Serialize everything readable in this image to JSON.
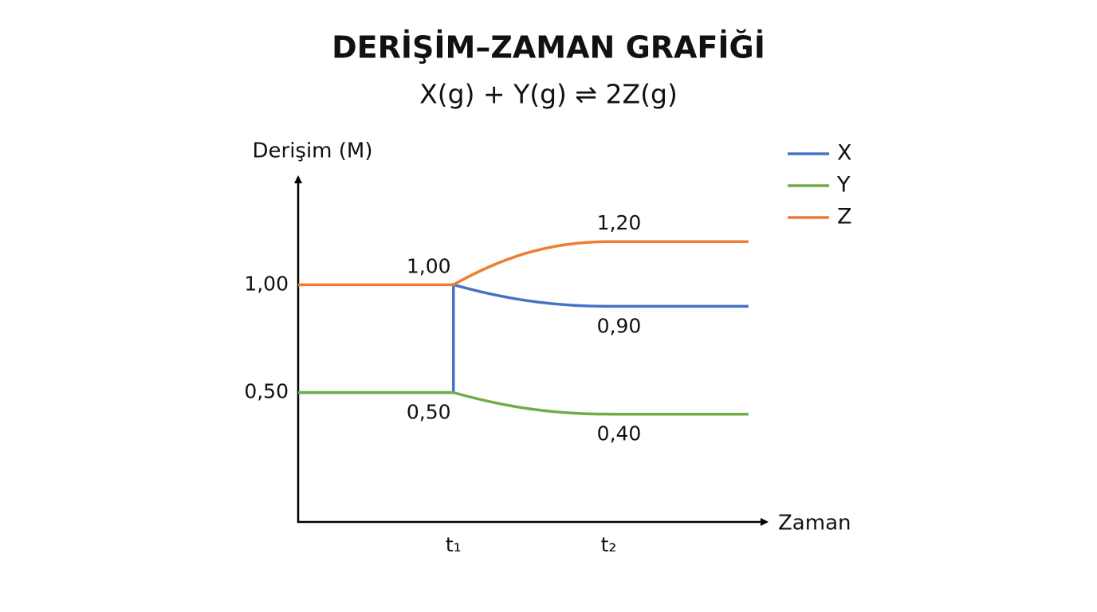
{
  "chart_data": {
    "type": "line",
    "title": "DERİŞİM–ZAMAN GRAFİĞİ",
    "subtitle": "X(g) + Y(g) ⇌ 2Z(g)",
    "y_label": "Derişim (M)",
    "x_label": "Zaman",
    "xlim": [
      0,
      3.05
    ],
    "ylim": [
      -0.1,
      1.5
    ],
    "xticks": [
      {
        "value": 1,
        "label": "t₁"
      },
      {
        "value": 2,
        "label": "t₂"
      }
    ],
    "yticks": [
      {
        "value": 0.5,
        "label": "0,50"
      },
      {
        "value": 1,
        "label": "1,00"
      }
    ],
    "grid": false,
    "legend": "top-right",
    "series": [
      {
        "name": "X",
        "color": "#4472c4",
        "x": [
          0,
          1,
          1,
          2,
          2.9
        ],
        "values": [
          0.5,
          0.5,
          1.0,
          0.9,
          0.9
        ],
        "value_labels": [
          null,
          null,
          null,
          "0,90",
          null
        ]
      },
      {
        "name": "Y",
        "color": "#70ad47",
        "x": [
          0,
          1,
          2,
          2.9
        ],
        "values": [
          0.5,
          0.5,
          0.4,
          0.4
        ],
        "value_labels": [
          null,
          "0,50",
          "0,40",
          null
        ]
      },
      {
        "name": "Z",
        "color": "#ed7d31",
        "x": [
          0,
          1,
          2,
          2.9
        ],
        "values": [
          1.0,
          1.0,
          1.2,
          1.2
        ],
        "value_labels": [
          null,
          "1,00",
          "1,20",
          null
        ]
      }
    ]
  }
}
